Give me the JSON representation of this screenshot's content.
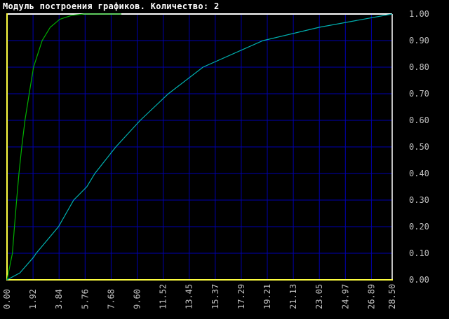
{
  "window": {
    "title": "Модуль построения графиков. Количество: 2"
  },
  "chart_data": {
    "type": "line",
    "title": "",
    "xlabel": "",
    "ylabel": "",
    "xlim": [
      0,
      28.5
    ],
    "ylim": [
      0,
      1.0
    ],
    "grid": true,
    "y_axis_side": "right",
    "x_tick_labels": [
      "0.00",
      "1.92",
      "3.84",
      "5.76",
      "7.68",
      "9.60",
      "11.52",
      "13.45",
      "15.37",
      "17.29",
      "19.21",
      "21.13",
      "23.05",
      "24.97",
      "26.89",
      "28.50"
    ],
    "y_tick_labels": [
      "0.00",
      "0.10",
      "0.20",
      "0.30",
      "0.40",
      "0.50",
      "0.60",
      "0.70",
      "0.80",
      "0.90",
      "1.00"
    ],
    "colors": {
      "background": "#000000",
      "grid": "#0000b0",
      "axis_left_bottom": "#ffff40",
      "axis_top_right": "#ffffff",
      "tick_label": "#c0c0c0"
    },
    "series": [
      {
        "color": "#00b000",
        "x": [
          0,
          0.4,
          0.55,
          0.71,
          0.88,
          1.09,
          1.33,
          1.64,
          1.96,
          2.6,
          3.2,
          3.9,
          4.8,
          5.7,
          8.46
        ],
        "y": [
          0,
          0.1,
          0.2,
          0.3,
          0.4,
          0.5,
          0.6,
          0.7,
          0.8,
          0.9,
          0.95,
          0.98,
          0.995,
          1.0,
          1.0
        ]
      },
      {
        "color": "#00b0b0",
        "x": [
          0,
          0.95,
          1.96,
          2.16,
          3.81,
          4.93,
          5.9,
          6.5,
          8.05,
          9.86,
          11.94,
          14.5,
          18.95,
          23.1,
          28.5
        ],
        "y": [
          0,
          0.026,
          0.085,
          0.1,
          0.2,
          0.3,
          0.35,
          0.4,
          0.5,
          0.6,
          0.7,
          0.8,
          0.9,
          0.95,
          1.0
        ]
      }
    ]
  }
}
